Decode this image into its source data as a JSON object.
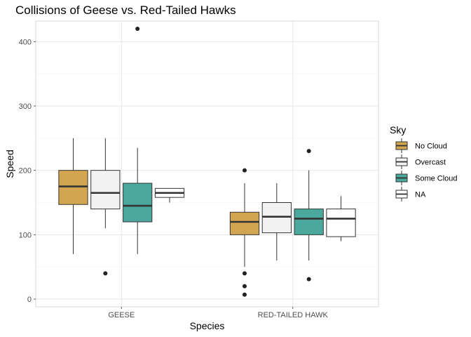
{
  "chart_data": {
    "type": "boxplot",
    "title": "Collisions of Geese vs. Red-Tailed Hawks",
    "xlabel": "Species",
    "ylabel": "Speed",
    "categories": [
      "GEESE",
      "RED-TAILED HAWK"
    ],
    "ylim": [
      -12,
      432
    ],
    "yticks": [
      0,
      100,
      200,
      300,
      400
    ],
    "grid": true,
    "legend": {
      "title": "Sky",
      "position": "right",
      "entries": [
        {
          "label": "No Cloud",
          "color": "#d4a550"
        },
        {
          "label": "Overcast",
          "color": "#f2f2f2"
        },
        {
          "label": "Some Cloud",
          "color": "#4aa99c"
        },
        {
          "label": "NA",
          "color": "#ffffff"
        }
      ]
    },
    "series": [
      {
        "name": "No Cloud",
        "color": "#d4a550",
        "boxes": [
          {
            "category": "GEESE",
            "whisker_low": 70,
            "q1": 147,
            "median": 175,
            "q3": 200,
            "whisker_high": 250,
            "outliers": []
          },
          {
            "category": "RED-TAILED HAWK",
            "whisker_low": 50,
            "q1": 100,
            "median": 120,
            "q3": 135,
            "whisker_high": 180,
            "outliers": [
              200,
              40,
              20,
              7
            ]
          }
        ]
      },
      {
        "name": "Overcast",
        "color": "#f2f2f2",
        "boxes": [
          {
            "category": "GEESE",
            "whisker_low": 110,
            "q1": 140,
            "median": 165,
            "q3": 200,
            "whisker_high": 250,
            "outliers": [
              40
            ]
          },
          {
            "category": "RED-TAILED HAWK",
            "whisker_low": 60,
            "q1": 103,
            "median": 128,
            "q3": 150,
            "whisker_high": 180,
            "outliers": []
          }
        ]
      },
      {
        "name": "Some Cloud",
        "color": "#4aa99c",
        "boxes": [
          {
            "category": "GEESE",
            "whisker_low": 70,
            "q1": 120,
            "median": 145,
            "q3": 180,
            "whisker_high": 235,
            "outliers": [
              420
            ]
          },
          {
            "category": "RED-TAILED HAWK",
            "whisker_low": 60,
            "q1": 100,
            "median": 125,
            "q3": 140,
            "whisker_high": 200,
            "outliers": [
              230,
              31
            ]
          }
        ]
      },
      {
        "name": "NA",
        "color": "#ffffff",
        "boxes": [
          {
            "category": "GEESE",
            "whisker_low": 150,
            "q1": 158,
            "median": 165,
            "q3": 172,
            "whisker_high": 172,
            "outliers": []
          },
          {
            "category": "RED-TAILED HAWK",
            "whisker_low": 90,
            "q1": 97,
            "median": 125,
            "q3": 140,
            "whisker_high": 160,
            "outliers": []
          }
        ]
      }
    ]
  }
}
